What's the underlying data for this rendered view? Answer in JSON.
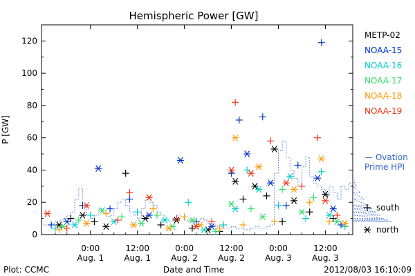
{
  "chart_data": {
    "type": "scatter",
    "title": "Hemispheric Power [GW]",
    "ylabel": "P [GW]",
    "xlabel": "Date and Time",
    "ylim": [
      0,
      130
    ],
    "yticks": [
      0,
      20,
      40,
      60,
      80,
      100,
      120
    ],
    "x_unit": "hours since first 00:00 tick (Aug. 1 00:00)",
    "xlim": [
      -12.5,
      67
    ],
    "xticks": [
      {
        "x": 0,
        "time": "0:00",
        "date": "Aug. 1"
      },
      {
        "x": 12,
        "time": "12:00",
        "date": "Aug. 1"
      },
      {
        "x": 24,
        "time": "0:00",
        "date": "Aug. 2"
      },
      {
        "x": 36,
        "time": "12:00",
        "date": "Aug. 2"
      },
      {
        "x": 48,
        "time": "0:00",
        "date": "Aug. 3"
      },
      {
        "x": 60,
        "time": "12:00",
        "date": "Aug. 3"
      }
    ],
    "grid": false,
    "legend_position": "right",
    "series": [
      {
        "name": "METP-02",
        "color": "#000000",
        "points": [
          {
            "x": -8,
            "y": 6,
            "m": "*"
          },
          {
            "x": -5,
            "y": 10,
            "m": "+"
          },
          {
            "x": -2,
            "y": 12,
            "m": "*"
          },
          {
            "x": 1,
            "y": 8,
            "m": "+"
          },
          {
            "x": 4,
            "y": 5,
            "m": "*"
          },
          {
            "x": 9,
            "y": 38,
            "m": "+"
          },
          {
            "x": 14,
            "y": 10,
            "m": "*"
          },
          {
            "x": 18,
            "y": 6,
            "m": "+"
          },
          {
            "x": 22,
            "y": 9,
            "m": "*"
          },
          {
            "x": 26,
            "y": 4,
            "m": "+"
          },
          {
            "x": 30,
            "y": 3,
            "m": "*"
          },
          {
            "x": 33,
            "y": 2,
            "m": "+"
          },
          {
            "x": 37,
            "y": 33,
            "m": "*"
          },
          {
            "x": 39,
            "y": 22,
            "m": "+"
          },
          {
            "x": 42,
            "y": 30,
            "m": "*"
          },
          {
            "x": 45,
            "y": 24,
            "m": "+"
          },
          {
            "x": 47,
            "y": 53,
            "m": "*"
          },
          {
            "x": 49,
            "y": 8,
            "m": "+"
          },
          {
            "x": 52,
            "y": 21,
            "m": "*"
          },
          {
            "x": 56,
            "y": 14,
            "m": "+"
          },
          {
            "x": 60,
            "y": 25,
            "m": "*"
          },
          {
            "x": 62,
            "y": 10,
            "m": "+"
          }
        ]
      },
      {
        "name": "NOAA-15",
        "color": "#0033cc",
        "points": [
          {
            "x": -10,
            "y": 6,
            "m": "+"
          },
          {
            "x": -6,
            "y": 8,
            "m": "*"
          },
          {
            "x": -2,
            "y": 18,
            "m": "+"
          },
          {
            "x": 2,
            "y": 41,
            "m": "*"
          },
          {
            "x": 5,
            "y": 16,
            "m": "+"
          },
          {
            "x": 10,
            "y": 22,
            "m": "+"
          },
          {
            "x": 15,
            "y": 12,
            "m": "*"
          },
          {
            "x": 23,
            "y": 46,
            "m": "*"
          },
          {
            "x": 27,
            "y": 8,
            "m": "+"
          },
          {
            "x": 31,
            "y": 5,
            "m": "*"
          },
          {
            "x": 36,
            "y": 38,
            "m": "+"
          },
          {
            "x": 38,
            "y": 71,
            "m": "+"
          },
          {
            "x": 40,
            "y": 50,
            "m": "*"
          },
          {
            "x": 44,
            "y": 73,
            "m": "+"
          },
          {
            "x": 46,
            "y": 32,
            "m": "*"
          },
          {
            "x": 50,
            "y": 18,
            "m": "+"
          },
          {
            "x": 53,
            "y": 43,
            "m": "+"
          },
          {
            "x": 58,
            "y": 35,
            "m": "*"
          },
          {
            "x": 59,
            "y": 119,
            "m": "+"
          },
          {
            "x": 62,
            "y": 16,
            "m": "*"
          },
          {
            "x": 64,
            "y": 6,
            "m": "+"
          }
        ]
      },
      {
        "name": "NOAA-16",
        "color": "#00cccc",
        "points": [
          {
            "x": -9,
            "y": 4,
            "m": "+"
          },
          {
            "x": -4,
            "y": 6,
            "m": "*"
          },
          {
            "x": 0,
            "y": 12,
            "m": "+"
          },
          {
            "x": 6,
            "y": 8,
            "m": "*"
          },
          {
            "x": 12,
            "y": 14,
            "m": "+"
          },
          {
            "x": 19,
            "y": 9,
            "m": "*"
          },
          {
            "x": 25,
            "y": 20,
            "m": "+"
          },
          {
            "x": 29,
            "y": 3,
            "m": "*"
          },
          {
            "x": 34,
            "y": 6,
            "m": "+"
          },
          {
            "x": 37,
            "y": 16,
            "m": "*"
          },
          {
            "x": 40,
            "y": 40,
            "m": "+"
          },
          {
            "x": 43,
            "y": 28,
            "m": "*"
          },
          {
            "x": 48,
            "y": 18,
            "m": "+"
          },
          {
            "x": 51,
            "y": 36,
            "m": "*"
          },
          {
            "x": 55,
            "y": 10,
            "m": "+"
          },
          {
            "x": 59,
            "y": 39,
            "m": "+"
          },
          {
            "x": 61,
            "y": 12,
            "m": "*"
          },
          {
            "x": 65,
            "y": 5,
            "m": "+"
          }
        ]
      },
      {
        "name": "NOAA-17",
        "color": "#33dd66",
        "points": [
          {
            "x": -7,
            "y": 5,
            "m": "*"
          },
          {
            "x": -3,
            "y": 9,
            "m": "+"
          },
          {
            "x": 3,
            "y": 15,
            "m": "*"
          },
          {
            "x": 8,
            "y": 11,
            "m": "+"
          },
          {
            "x": 13,
            "y": 7,
            "m": "*"
          },
          {
            "x": 17,
            "y": 12,
            "m": "+"
          },
          {
            "x": 21,
            "y": 5,
            "m": "*"
          },
          {
            "x": 26,
            "y": 9,
            "m": "*"
          },
          {
            "x": 32,
            "y": 2,
            "m": "+"
          },
          {
            "x": 36,
            "y": 19,
            "m": "*"
          },
          {
            "x": 41,
            "y": 16,
            "m": "+"
          },
          {
            "x": 44,
            "y": 11,
            "m": "*"
          },
          {
            "x": 49,
            "y": 28,
            "m": "+"
          },
          {
            "x": 54,
            "y": 14,
            "m": "*"
          },
          {
            "x": 57,
            "y": 23,
            "m": "+"
          },
          {
            "x": 63,
            "y": 8,
            "m": "*"
          }
        ]
      },
      {
        "name": "NOAA-18",
        "color": "#ff9900",
        "points": [
          {
            "x": -8,
            "y": 3,
            "m": "+"
          },
          {
            "x": -1,
            "y": 7,
            "m": "*"
          },
          {
            "x": 4,
            "y": 13,
            "m": "+"
          },
          {
            "x": 11,
            "y": 6,
            "m": "*"
          },
          {
            "x": 16,
            "y": 16,
            "m": "+"
          },
          {
            "x": 20,
            "y": 4,
            "m": "*"
          },
          {
            "x": 24,
            "y": 11,
            "m": "+"
          },
          {
            "x": 28,
            "y": 6,
            "m": "*"
          },
          {
            "x": 33,
            "y": 4,
            "m": "+"
          },
          {
            "x": 37,
            "y": 60,
            "m": "*"
          },
          {
            "x": 39,
            "y": 6,
            "m": "+"
          },
          {
            "x": 43,
            "y": 42,
            "m": "*"
          },
          {
            "x": 47,
            "y": 8,
            "m": "+"
          },
          {
            "x": 52,
            "y": 28,
            "m": "*"
          },
          {
            "x": 56,
            "y": 20,
            "m": "+"
          },
          {
            "x": 59,
            "y": 47,
            "m": "*"
          },
          {
            "x": 61,
            "y": 8,
            "m": "+"
          },
          {
            "x": 65,
            "y": 7,
            "m": "*"
          }
        ]
      },
      {
        "name": "NOAA-19",
        "color": "#ee3311",
        "points": [
          {
            "x": -11,
            "y": 13,
            "m": "*"
          },
          {
            "x": -6,
            "y": 4,
            "m": "+"
          },
          {
            "x": -1,
            "y": 18,
            "m": "*"
          },
          {
            "x": 7,
            "y": 9,
            "m": "+"
          },
          {
            "x": 10,
            "y": 26,
            "m": "+"
          },
          {
            "x": 15,
            "y": 23,
            "m": "*"
          },
          {
            "x": 22,
            "y": 10,
            "m": "+"
          },
          {
            "x": 27,
            "y": 5,
            "m": "*"
          },
          {
            "x": 31,
            "y": 8,
            "m": "+"
          },
          {
            "x": 36,
            "y": 40,
            "m": "*"
          },
          {
            "x": 37,
            "y": 82,
            "m": "+"
          },
          {
            "x": 41,
            "y": 38,
            "m": "*"
          },
          {
            "x": 46,
            "y": 58,
            "m": "+"
          },
          {
            "x": 50,
            "y": 32,
            "m": "*"
          },
          {
            "x": 54,
            "y": 30,
            "m": "+"
          },
          {
            "x": 58,
            "y": 60,
            "m": "+"
          },
          {
            "x": 60,
            "y": 21,
            "m": "*"
          },
          {
            "x": 63,
            "y": 12,
            "m": "+"
          }
        ]
      }
    ],
    "ovation": {
      "name": "Ovation Prime HPI",
      "color": "#3366cc",
      "step": 1,
      "x_start": -12,
      "values": [
        6,
        6,
        7,
        8,
        9,
        10,
        12,
        14,
        22,
        29,
        18,
        12,
        10,
        12,
        16,
        14,
        11,
        12,
        16,
        20,
        22,
        18,
        14,
        12,
        10,
        16,
        22,
        20,
        18,
        14,
        12,
        9,
        8,
        10,
        12,
        11,
        9,
        8,
        7,
        8,
        10,
        9,
        7,
        6,
        5,
        5,
        4,
        4,
        5,
        4,
        4,
        3,
        3,
        4,
        5,
        4,
        4,
        5,
        6,
        38,
        52,
        58,
        48,
        40,
        35,
        30,
        42,
        48,
        36,
        32,
        30,
        28,
        24,
        30,
        26,
        22,
        30,
        28,
        32,
        34,
        30,
        26,
        22,
        18,
        16,
        14,
        12,
        10,
        9,
        8
      ]
    },
    "marker_legend": [
      {
        "symbol": "+",
        "label": "south"
      },
      {
        "symbol": "*",
        "label": "north"
      }
    ]
  },
  "footer": {
    "left": "Plot: CCMC",
    "center": "Date and Time",
    "right": "2012/08/03 16:10:09"
  }
}
